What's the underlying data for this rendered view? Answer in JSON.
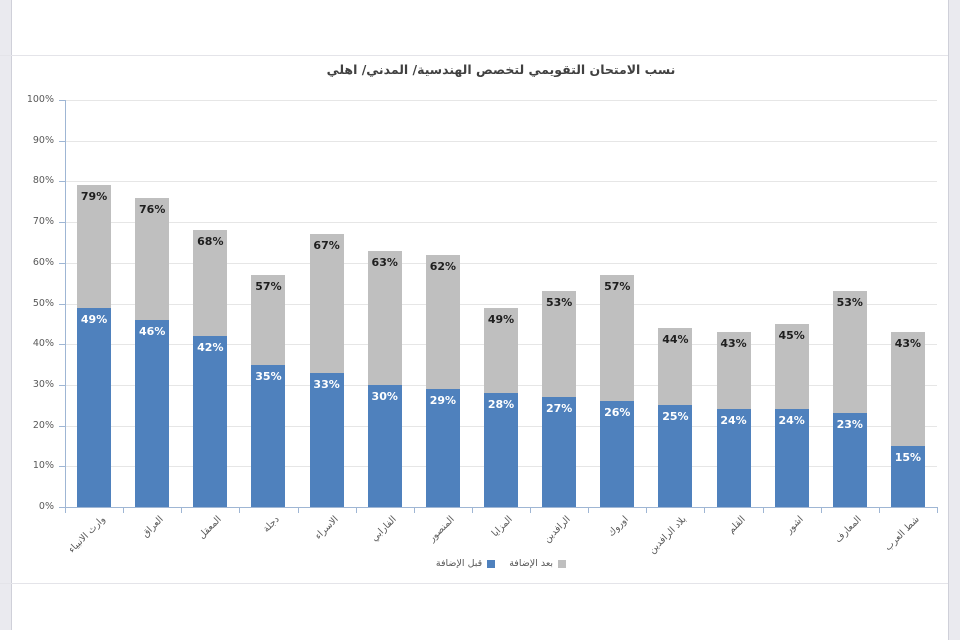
{
  "chart_data": {
    "type": "bar",
    "stacked": true,
    "title": "نسب الامتحان التقويمي لتخصص الهندسية/ المدني/ اهلي",
    "categories": [
      "وارث الانبياء",
      "العراق",
      "المعقل",
      "دجلة",
      "الاسراء",
      "الفارابي",
      "المنصور",
      "المزايا",
      "الرافدين",
      "اوروك",
      "بلاد الرافدين",
      "القلم",
      "اشور",
      "المعارف",
      "شط العرب"
    ],
    "series": [
      {
        "name": "قبل الإضافة",
        "color": "#4F81BD",
        "values": [
          49,
          46,
          42,
          35,
          33,
          30,
          29,
          28,
          27,
          26,
          25,
          24,
          24,
          23,
          15
        ]
      },
      {
        "name": "بعد الإضافة",
        "color": "#BFBFBF",
        "values": [
          79,
          76,
          68,
          57,
          67,
          63,
          62,
          49,
          53,
          57,
          44,
          43,
          45,
          53,
          43
        ],
        "note": "values are bar totals shown on the gray segment; gray spans from the blue value up to this total"
      }
    ],
    "label_format": "{value}%",
    "y_axis": {
      "min": 0,
      "max": 100,
      "step": 10,
      "tick_labels": [
        "0%",
        "10%",
        "20%",
        "30%",
        "40%",
        "50%",
        "60%",
        "70%",
        "80%",
        "90%",
        "100%"
      ]
    },
    "x_axis": {
      "label_rotation_deg": -45
    },
    "grid": true,
    "legend": {
      "position": "bottom",
      "items": [
        {
          "label": "قبل الإضافة",
          "color": "#4F81BD"
        },
        {
          "label": "بعد الإضافة",
          "color": "#BFBFBF"
        }
      ]
    },
    "colors": {
      "before": "#4F81BD",
      "after": "#BFBFBF",
      "axis": "#9FB6D4",
      "gridline": "#E6E6E6",
      "data_label_dark": "#1f1f1f",
      "data_label_light": "#ffffff",
      "tick_label": "#595959",
      "title": "#404040"
    }
  }
}
